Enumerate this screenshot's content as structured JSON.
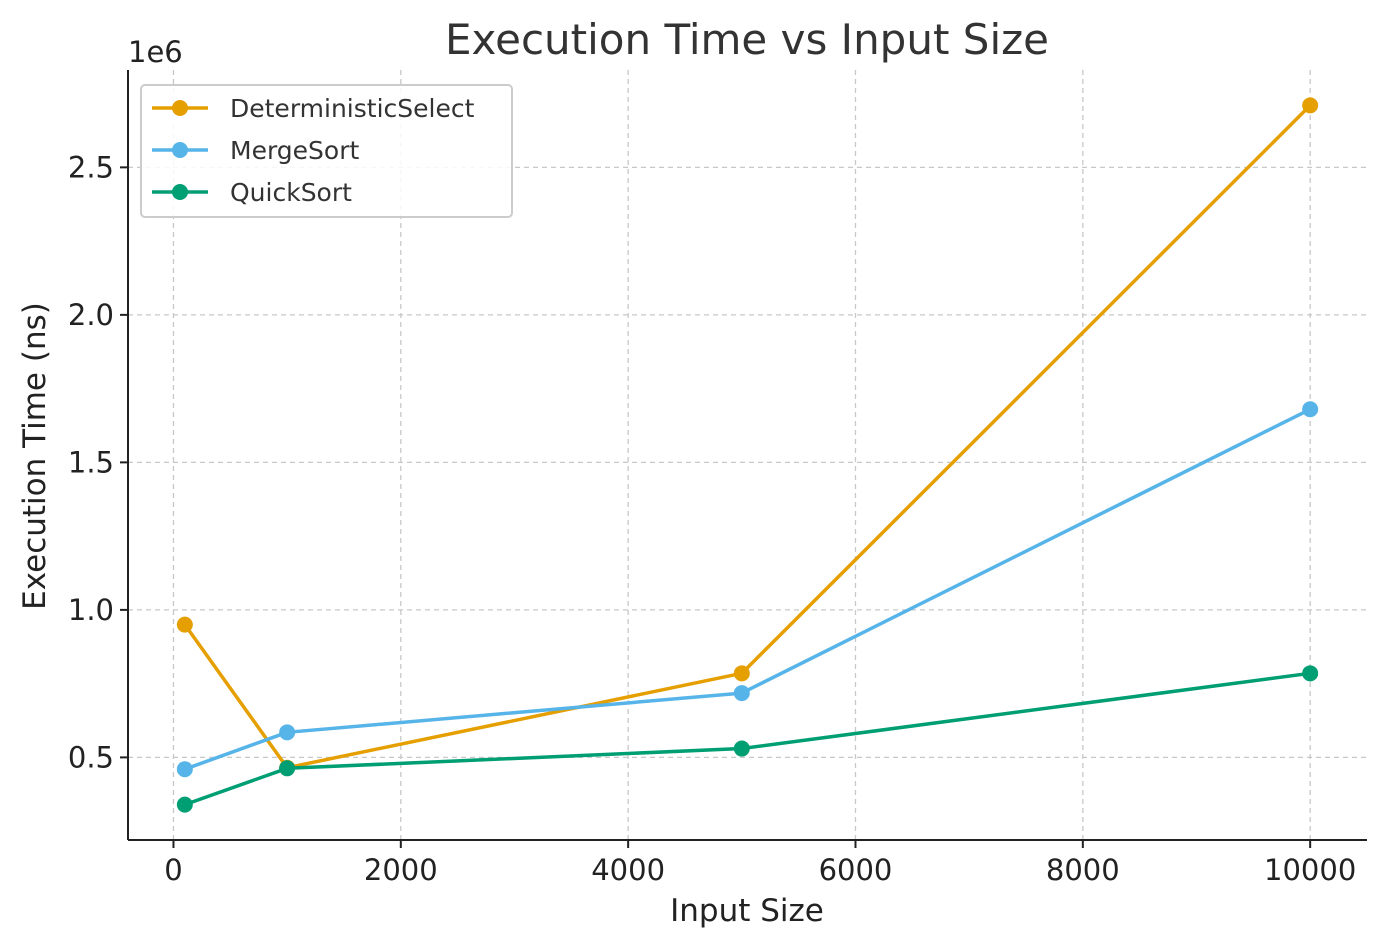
{
  "chart_data": {
    "type": "line",
    "title": "Execution Time vs Input Size",
    "xlabel": "Input Size",
    "ylabel": "Execution Time (ns)",
    "y_offset_label": "1e6",
    "x": [
      100,
      1000,
      5000,
      10000
    ],
    "xlim": [
      -400,
      10500
    ],
    "ylim": [
      0.22,
      2.83
    ],
    "y_unit_multiplier": 1000000,
    "x_ticks": [
      0,
      2000,
      4000,
      6000,
      8000,
      10000
    ],
    "x_tick_labels": [
      "0",
      "2000",
      "4000",
      "6000",
      "8000",
      "10000"
    ],
    "y_ticks": [
      0.5,
      1.0,
      1.5,
      2.0,
      2.5
    ],
    "y_tick_labels": [
      "0.5",
      "1.0",
      "1.5",
      "2.0",
      "2.5"
    ],
    "grid": true,
    "legend_position": "top-left",
    "series": [
      {
        "name": "DeterministicSelect",
        "color": "#E69F00",
        "values": [
          0.95,
          0.465,
          0.785,
          2.71
        ]
      },
      {
        "name": "MergeSort",
        "color": "#56B4E9",
        "values": [
          0.46,
          0.585,
          0.718,
          1.68
        ]
      },
      {
        "name": "QuickSort",
        "color": "#009E73",
        "values": [
          0.34,
          0.463,
          0.53,
          0.785
        ]
      }
    ]
  }
}
